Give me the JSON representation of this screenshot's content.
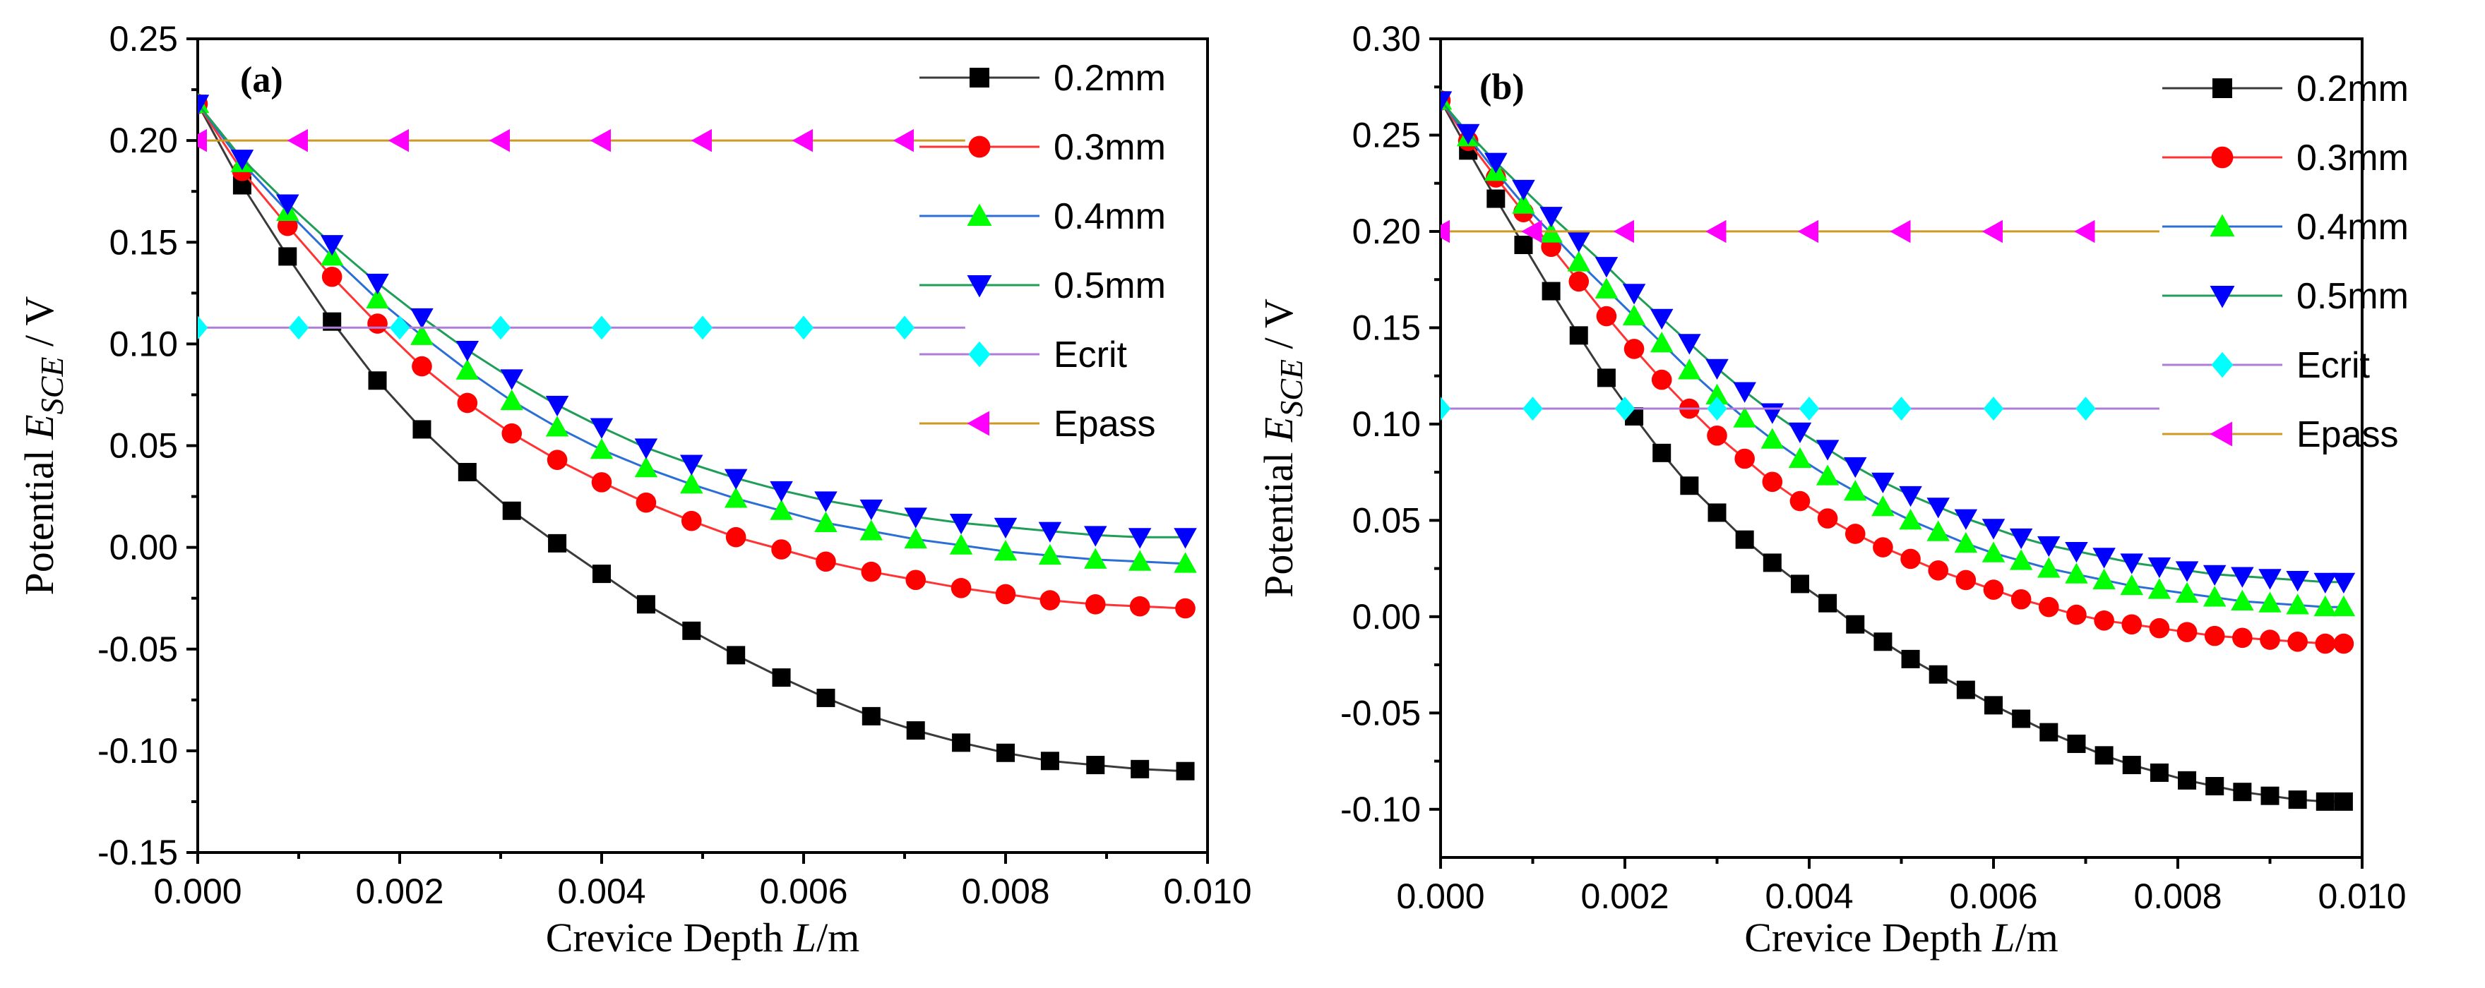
{
  "chart_data": [
    {
      "type": "line",
      "panel_label": "(a)",
      "xlabel": {
        "prefix": "Crevice Depth ",
        "var": "L",
        "suffix": "/m"
      },
      "ylabel": {
        "prefix": "Potential  ",
        "var": "E",
        "sub": "SCE",
        "suffix": " / V"
      },
      "xlim": [
        0,
        0.01
      ],
      "ylim": [
        -0.15,
        0.25
      ],
      "xticks": [
        "0.000",
        "0.002",
        "0.004",
        "0.006",
        "0.008",
        "0.010"
      ],
      "yticks": [
        "-0.15",
        "-0.10",
        "-0.05",
        "0.00",
        "0.05",
        "0.10",
        "0.15",
        "0.20",
        "0.25"
      ],
      "legend_position": "top-right",
      "series": [
        {
          "name": "0.2mm",
          "line_color": "#3a3a3a",
          "marker_color": "#000000",
          "marker": "square",
          "x": [
            0,
            0.00044,
            0.00089,
            0.00133,
            0.00178,
            0.00222,
            0.00267,
            0.00311,
            0.00356,
            0.004,
            0.00444,
            0.00489,
            0.00533,
            0.00578,
            0.00622,
            0.00667,
            0.00711,
            0.00756,
            0.008,
            0.00844,
            0.00889,
            0.00933,
            0.00978
          ],
          "y": [
            0.218,
            0.178,
            0.143,
            0.111,
            0.082,
            0.058,
            0.037,
            0.018,
            0.002,
            -0.013,
            -0.028,
            -0.041,
            -0.053,
            -0.064,
            -0.074,
            -0.083,
            -0.09,
            -0.096,
            -0.101,
            -0.105,
            -0.107,
            -0.109,
            -0.11
          ]
        },
        {
          "name": "0.3mm",
          "line_color": "#ff3333",
          "marker_color": "#ff0000",
          "marker": "circle",
          "x": [
            0,
            0.00044,
            0.00089,
            0.00133,
            0.00178,
            0.00222,
            0.00267,
            0.00311,
            0.00356,
            0.004,
            0.00444,
            0.00489,
            0.00533,
            0.00578,
            0.00622,
            0.00667,
            0.00711,
            0.00756,
            0.008,
            0.00844,
            0.00889,
            0.00933,
            0.00978
          ],
          "y": [
            0.218,
            0.185,
            0.158,
            0.133,
            0.11,
            0.089,
            0.071,
            0.056,
            0.043,
            0.032,
            0.022,
            0.013,
            0.005,
            -0.001,
            -0.007,
            -0.012,
            -0.016,
            -0.02,
            -0.023,
            -0.026,
            -0.028,
            -0.029,
            -0.03
          ]
        },
        {
          "name": "0.4mm",
          "line_color": "#2b6fd6",
          "marker_color": "#00ff00",
          "marker": "triangle-up",
          "x": [
            0,
            0.00044,
            0.00089,
            0.00133,
            0.00178,
            0.00222,
            0.00267,
            0.00311,
            0.00356,
            0.004,
            0.00444,
            0.00489,
            0.00533,
            0.00578,
            0.00622,
            0.00667,
            0.00711,
            0.00756,
            0.008,
            0.00844,
            0.00889,
            0.00933,
            0.00978
          ],
          "y": [
            0.218,
            0.189,
            0.165,
            0.143,
            0.122,
            0.104,
            0.087,
            0.072,
            0.059,
            0.048,
            0.039,
            0.031,
            0.024,
            0.018,
            0.012,
            0.008,
            0.004,
            0.001,
            -0.002,
            -0.004,
            -0.006,
            -0.007,
            -0.008
          ]
        },
        {
          "name": "0.5mm",
          "line_color": "#1f9e57",
          "marker_color": "#0000ff",
          "marker": "triangle-down",
          "x": [
            0,
            0.00044,
            0.00089,
            0.00133,
            0.00178,
            0.00222,
            0.00267,
            0.00311,
            0.00356,
            0.004,
            0.00444,
            0.00489,
            0.00533,
            0.00578,
            0.00622,
            0.00667,
            0.00711,
            0.00756,
            0.008,
            0.00844,
            0.00889,
            0.00933,
            0.00978
          ],
          "y": [
            0.218,
            0.191,
            0.169,
            0.149,
            0.13,
            0.113,
            0.097,
            0.083,
            0.07,
            0.059,
            0.049,
            0.041,
            0.034,
            0.028,
            0.023,
            0.019,
            0.015,
            0.012,
            0.01,
            0.008,
            0.006,
            0.005,
            0.005
          ]
        },
        {
          "name": "Ecrit",
          "line_color": "#b07cd9",
          "marker_color": "#00ffff",
          "marker": "diamond",
          "x": [
            0,
            0.001,
            0.002,
            0.003,
            0.004,
            0.005,
            0.006,
            0.007,
            0.0076
          ],
          "y": [
            0.108,
            0.108,
            0.108,
            0.108,
            0.108,
            0.108,
            0.108,
            0.108,
            0.108
          ],
          "marker_count": 8
        },
        {
          "name": "Epass",
          "line_color": "#cc9a22",
          "marker_color": "#ff00ff",
          "marker": "triangle-left",
          "x": [
            0,
            0.001,
            0.002,
            0.003,
            0.004,
            0.005,
            0.006,
            0.007,
            0.0076
          ],
          "y": [
            0.2,
            0.2,
            0.2,
            0.2,
            0.2,
            0.2,
            0.2,
            0.2,
            0.2
          ],
          "marker_count": 8
        }
      ]
    },
    {
      "type": "line",
      "panel_label": "(b)",
      "xlabel": {
        "prefix": "Crevice Depth ",
        "var": "L",
        "suffix": "/m"
      },
      "ylabel": {
        "prefix": "Potential  ",
        "var": "E",
        "sub": "SCE",
        "suffix": " / V"
      },
      "xlim": [
        0,
        0.01
      ],
      "ylim": [
        -0.125,
        0.3
      ],
      "xticks": [
        "0.000",
        "0.002",
        "0.004",
        "0.006",
        "0.008",
        "0.010"
      ],
      "yticks": [
        "-0.10",
        "-0.05",
        "0.00",
        "0.05",
        "0.10",
        "0.15",
        "0.20",
        "0.25",
        "0.30"
      ],
      "legend_position": "top-right",
      "series": [
        {
          "name": "0.2mm",
          "line_color": "#3a3a3a",
          "marker_color": "#000000",
          "marker": "square",
          "x": [
            0,
            0.0003,
            0.0006,
            0.0009,
            0.0012,
            0.0015,
            0.0018,
            0.0021,
            0.0024,
            0.0027,
            0.003,
            0.0033,
            0.0036,
            0.0039,
            0.0042,
            0.0045,
            0.0048,
            0.0051,
            0.0054,
            0.0057,
            0.006,
            0.0063,
            0.0066,
            0.0069,
            0.0072,
            0.0075,
            0.0078,
            0.0081,
            0.0084,
            0.0087,
            0.009,
            0.0093,
            0.0096,
            0.0098
          ],
          "y": [
            0.268,
            0.242,
            0.217,
            0.193,
            0.169,
            0.146,
            0.124,
            0.104,
            0.085,
            0.068,
            0.054,
            0.04,
            0.028,
            0.017,
            0.007,
            -0.004,
            -0.013,
            -0.022,
            -0.03,
            -0.038,
            -0.046,
            -0.053,
            -0.06,
            -0.066,
            -0.072,
            -0.077,
            -0.081,
            -0.085,
            -0.088,
            -0.091,
            -0.093,
            -0.095,
            -0.096,
            -0.096
          ]
        },
        {
          "name": "0.3mm",
          "line_color": "#ff3333",
          "marker_color": "#ff0000",
          "marker": "circle",
          "x": [
            0,
            0.0003,
            0.0006,
            0.0009,
            0.0012,
            0.0015,
            0.0018,
            0.0021,
            0.0024,
            0.0027,
            0.003,
            0.0033,
            0.0036,
            0.0039,
            0.0042,
            0.0045,
            0.0048,
            0.0051,
            0.0054,
            0.0057,
            0.006,
            0.0063,
            0.0066,
            0.0069,
            0.0072,
            0.0075,
            0.0078,
            0.0081,
            0.0084,
            0.0087,
            0.009,
            0.0093,
            0.0096,
            0.0098
          ],
          "y": [
            0.268,
            0.247,
            0.228,
            0.21,
            0.192,
            0.174,
            0.156,
            0.139,
            0.123,
            0.108,
            0.094,
            0.082,
            0.07,
            0.06,
            0.051,
            0.043,
            0.036,
            0.03,
            0.024,
            0.019,
            0.014,
            0.009,
            0.005,
            0.001,
            -0.002,
            -0.004,
            -0.006,
            -0.008,
            -0.01,
            -0.011,
            -0.012,
            -0.013,
            -0.014,
            -0.014
          ]
        },
        {
          "name": "0.4mm",
          "line_color": "#2b6fd6",
          "marker_color": "#00ff00",
          "marker": "triangle-up",
          "x": [
            0,
            0.0003,
            0.0006,
            0.0009,
            0.0012,
            0.0015,
            0.0018,
            0.0021,
            0.0024,
            0.0027,
            0.003,
            0.0033,
            0.0036,
            0.0039,
            0.0042,
            0.0045,
            0.0048,
            0.0051,
            0.0054,
            0.0057,
            0.006,
            0.0063,
            0.0066,
            0.0069,
            0.0072,
            0.0075,
            0.0078,
            0.0081,
            0.0084,
            0.0087,
            0.009,
            0.0093,
            0.0096,
            0.0098
          ],
          "y": [
            0.268,
            0.249,
            0.231,
            0.214,
            0.199,
            0.184,
            0.17,
            0.156,
            0.142,
            0.128,
            0.115,
            0.103,
            0.092,
            0.082,
            0.073,
            0.065,
            0.057,
            0.05,
            0.044,
            0.038,
            0.033,
            0.029,
            0.025,
            0.022,
            0.019,
            0.016,
            0.014,
            0.012,
            0.01,
            0.008,
            0.007,
            0.006,
            0.005,
            0.005
          ]
        },
        {
          "name": "0.5mm",
          "line_color": "#1f9e57",
          "marker_color": "#0000ff",
          "marker": "triangle-down",
          "x": [
            0,
            0.0003,
            0.0006,
            0.0009,
            0.0012,
            0.0015,
            0.0018,
            0.0021,
            0.0024,
            0.0027,
            0.003,
            0.0033,
            0.0036,
            0.0039,
            0.0042,
            0.0045,
            0.0048,
            0.0051,
            0.0054,
            0.0057,
            0.006,
            0.0063,
            0.0066,
            0.0069,
            0.0072,
            0.0075,
            0.0078,
            0.0081,
            0.0084,
            0.0087,
            0.009,
            0.0093,
            0.0096,
            0.0098
          ],
          "y": [
            0.268,
            0.251,
            0.236,
            0.222,
            0.208,
            0.195,
            0.182,
            0.168,
            0.155,
            0.142,
            0.129,
            0.117,
            0.106,
            0.096,
            0.087,
            0.078,
            0.07,
            0.063,
            0.057,
            0.051,
            0.046,
            0.041,
            0.037,
            0.034,
            0.031,
            0.028,
            0.026,
            0.024,
            0.022,
            0.021,
            0.02,
            0.019,
            0.018,
            0.018
          ]
        },
        {
          "name": "Ecrit",
          "line_color": "#b07cd9",
          "marker_color": "#00ffff",
          "marker": "diamond",
          "x": [
            0,
            0.001,
            0.002,
            0.003,
            0.004,
            0.005,
            0.006,
            0.007,
            0.0078
          ],
          "y": [
            0.108,
            0.108,
            0.108,
            0.108,
            0.108,
            0.108,
            0.108,
            0.108,
            0.108
          ],
          "marker_count": 8
        },
        {
          "name": "Epass",
          "line_color": "#cc9a22",
          "marker_color": "#ff00ff",
          "marker": "triangle-left",
          "x": [
            0,
            0.001,
            0.002,
            0.003,
            0.004,
            0.005,
            0.006,
            0.007,
            0.0078
          ],
          "y": [
            0.2,
            0.2,
            0.2,
            0.2,
            0.2,
            0.2,
            0.2,
            0.2,
            0.2
          ],
          "marker_count": 8
        }
      ]
    }
  ]
}
